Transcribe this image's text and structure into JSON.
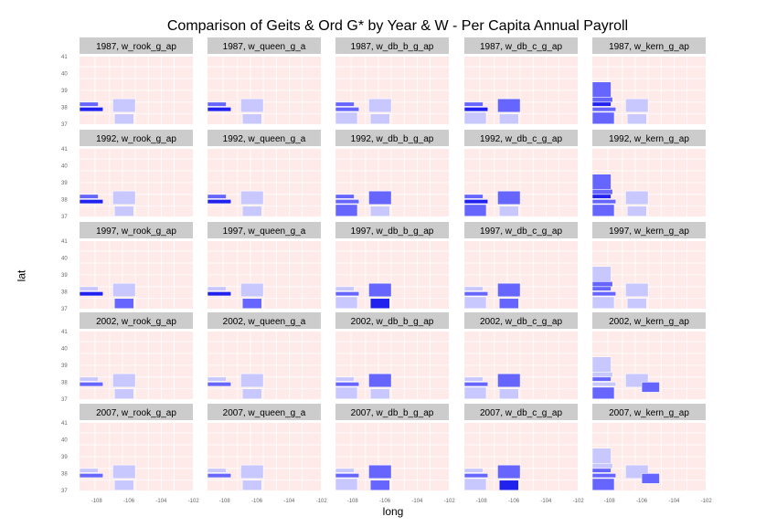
{
  "chart_data": {
    "type": "heatmap",
    "title": "Comparison of Geits & Ord G* by Year & W - Per Capita Annual Payroll",
    "xlabel": "long",
    "ylabel": "lat",
    "x_ticks": [
      "-108",
      "-106",
      "-104",
      "-102"
    ],
    "y_ticks": [
      "41",
      "40",
      "39",
      "38",
      "37"
    ],
    "xlim": [
      -109.06,
      -102.04
    ],
    "ylim": [
      36.99,
      41.0
    ],
    "grid": false,
    "legend": "none",
    "colors": {
      "panel_bg": "#ffeaea",
      "county_border": "#ffffff",
      "strip_bg": "#cccccc",
      "hot_spot_strong": "#2222ee",
      "hot_spot_medium": "#6666ff",
      "hot_spot_light": "#c8c8ff"
    },
    "years": [
      "1987",
      "1992",
      "1997",
      "2002",
      "2007"
    ],
    "weights": [
      "w_rook_g_ap",
      "w_queen_g_a",
      "w_db_b_g_ap",
      "w_db_c_g_ap",
      "w_kern_g_ap"
    ],
    "panels": [
      {
        "label": "1987, w_rook_g_ap"
      },
      {
        "label": "1987, w_queen_g_a"
      },
      {
        "label": "1987, w_db_b_g_ap"
      },
      {
        "label": "1987, w_db_c_g_ap"
      },
      {
        "label": "1987, w_kern_g_ap"
      },
      {
        "label": "1992, w_rook_g_ap"
      },
      {
        "label": "1992, w_queen_g_a"
      },
      {
        "label": "1992, w_db_b_g_ap"
      },
      {
        "label": "1992, w_db_c_g_ap"
      },
      {
        "label": "1992, w_kern_g_ap"
      },
      {
        "label": "1997, w_rook_g_ap"
      },
      {
        "label": "1997, w_queen_g_a"
      },
      {
        "label": "1997, w_db_b_g_ap"
      },
      {
        "label": "1997, w_db_c_g_ap"
      },
      {
        "label": "1997, w_kern_g_ap"
      },
      {
        "label": "2002, w_rook_g_ap"
      },
      {
        "label": "2002, w_queen_g_a"
      },
      {
        "label": "2002, w_db_b_g_ap"
      },
      {
        "label": "2002, w_db_c_g_ap"
      },
      {
        "label": "2002, w_kern_g_ap"
      },
      {
        "label": "2007, w_rook_g_ap"
      },
      {
        "label": "2007, w_queen_g_a"
      },
      {
        "label": "2007, w_db_b_g_ap"
      },
      {
        "label": "2007, w_db_c_g_ap"
      },
      {
        "label": "2007, w_kern_g_ap"
      }
    ],
    "regions": {
      "sw_strip_1": {
        "lon": [
          -109.06,
          -107.9
        ],
        "lat": [
          38.05,
          38.3
        ]
      },
      "sw_strip_2": {
        "lon": [
          -109.06,
          -107.6
        ],
        "lat": [
          37.75,
          38.0
        ]
      },
      "sw_block": {
        "lon": [
          -109.06,
          -107.7
        ],
        "lat": [
          37.0,
          37.7
        ]
      },
      "sw_upper": {
        "lon": [
          -109.06,
          -107.8
        ],
        "lat": [
          38.3,
          38.6
        ]
      },
      "sc_upper": {
        "lon": [
          -107.0,
          -105.6
        ],
        "lat": [
          37.7,
          38.5
        ]
      },
      "sc_lower": {
        "lon": [
          -106.9,
          -105.7
        ],
        "lat": [
          37.0,
          37.6
        ]
      },
      "west_band": {
        "lon": [
          -109.06,
          -107.9
        ],
        "lat": [
          38.6,
          39.5
        ]
      },
      "central_band": {
        "lon": [
          -106.0,
          -104.9
        ],
        "lat": [
          37.4,
          38.0
        ]
      }
    },
    "county_lines": {
      "lon": [
        -108.1,
        -107.2,
        -106.4,
        -105.6,
        -104.8,
        -104.0,
        -103.2
      ],
      "lat": [
        37.6,
        38.3,
        39.0,
        39.7,
        40.4
      ]
    },
    "cells": [
      {
        "panel": 0,
        "region": "sw_strip_1",
        "level": 2
      },
      {
        "panel": 0,
        "region": "sw_strip_2",
        "level": 3
      },
      {
        "panel": 0,
        "region": "sc_upper",
        "level": 1
      },
      {
        "panel": 0,
        "region": "sc_lower",
        "level": 1
      },
      {
        "panel": 1,
        "region": "sw_strip_1",
        "level": 2
      },
      {
        "panel": 1,
        "region": "sw_strip_2",
        "level": 3
      },
      {
        "panel": 1,
        "region": "sc_upper",
        "level": 1
      },
      {
        "panel": 1,
        "region": "sc_lower",
        "level": 1
      },
      {
        "panel": 2,
        "region": "sw_strip_1",
        "level": 2
      },
      {
        "panel": 2,
        "region": "sw_strip_2",
        "level": 2
      },
      {
        "panel": 2,
        "region": "sw_block",
        "level": 1
      },
      {
        "panel": 2,
        "region": "sc_upper",
        "level": 1
      },
      {
        "panel": 2,
        "region": "sc_lower",
        "level": 1
      },
      {
        "panel": 3,
        "region": "sw_strip_1",
        "level": 2
      },
      {
        "panel": 3,
        "region": "sw_strip_2",
        "level": 3
      },
      {
        "panel": 3,
        "region": "sw_block",
        "level": 1
      },
      {
        "panel": 3,
        "region": "sc_upper",
        "level": 2
      },
      {
        "panel": 3,
        "region": "sc_lower",
        "level": 1
      },
      {
        "panel": 4,
        "region": "west_band",
        "level": 2
      },
      {
        "panel": 4,
        "region": "sw_upper",
        "level": 2
      },
      {
        "panel": 4,
        "region": "sw_strip_1",
        "level": 3
      },
      {
        "panel": 4,
        "region": "sw_strip_2",
        "level": 2
      },
      {
        "panel": 4,
        "region": "sw_block",
        "level": 2
      },
      {
        "panel": 4,
        "region": "sc_upper",
        "level": 1
      },
      {
        "panel": 4,
        "region": "sc_lower",
        "level": 1
      },
      {
        "panel": 5,
        "region": "sw_strip_1",
        "level": 2
      },
      {
        "panel": 5,
        "region": "sw_strip_2",
        "level": 3
      },
      {
        "panel": 5,
        "region": "sc_upper",
        "level": 1
      },
      {
        "panel": 5,
        "region": "sc_lower",
        "level": 1
      },
      {
        "panel": 6,
        "region": "sw_strip_1",
        "level": 2
      },
      {
        "panel": 6,
        "region": "sw_strip_2",
        "level": 3
      },
      {
        "panel": 6,
        "region": "sc_upper",
        "level": 1
      },
      {
        "panel": 6,
        "region": "sc_lower",
        "level": 1
      },
      {
        "panel": 7,
        "region": "sw_strip_1",
        "level": 2
      },
      {
        "panel": 7,
        "region": "sw_strip_2",
        "level": 2
      },
      {
        "panel": 7,
        "region": "sw_block",
        "level": 2
      },
      {
        "panel": 7,
        "region": "sc_upper",
        "level": 2
      },
      {
        "panel": 7,
        "region": "sc_lower",
        "level": 1
      },
      {
        "panel": 8,
        "region": "sw_strip_1",
        "level": 2
      },
      {
        "panel": 8,
        "region": "sw_strip_2",
        "level": 3
      },
      {
        "panel": 8,
        "region": "sw_block",
        "level": 2
      },
      {
        "panel": 8,
        "region": "sc_upper",
        "level": 2
      },
      {
        "panel": 8,
        "region": "sc_lower",
        "level": 1
      },
      {
        "panel": 9,
        "region": "west_band",
        "level": 2
      },
      {
        "panel": 9,
        "region": "sw_upper",
        "level": 2
      },
      {
        "panel": 9,
        "region": "sw_strip_1",
        "level": 3
      },
      {
        "panel": 9,
        "region": "sw_strip_2",
        "level": 2
      },
      {
        "panel": 9,
        "region": "sw_block",
        "level": 2
      },
      {
        "panel": 9,
        "region": "sc_upper",
        "level": 1
      },
      {
        "panel": 9,
        "region": "sc_lower",
        "level": 1
      },
      {
        "panel": 10,
        "region": "sw_strip_1",
        "level": 1
      },
      {
        "panel": 10,
        "region": "sw_strip_2",
        "level": 3
      },
      {
        "panel": 10,
        "region": "sc_upper",
        "level": 1
      },
      {
        "panel": 10,
        "region": "sc_lower",
        "level": 2
      },
      {
        "panel": 11,
        "region": "sw_strip_1",
        "level": 1
      },
      {
        "panel": 11,
        "region": "sw_strip_2",
        "level": 3
      },
      {
        "panel": 11,
        "region": "sc_upper",
        "level": 1
      },
      {
        "panel": 11,
        "region": "sc_lower",
        "level": 2
      },
      {
        "panel": 12,
        "region": "sw_strip_1",
        "level": 1
      },
      {
        "panel": 12,
        "region": "sw_strip_2",
        "level": 2
      },
      {
        "panel": 12,
        "region": "sw_block",
        "level": 1
      },
      {
        "panel": 12,
        "region": "sc_upper",
        "level": 2
      },
      {
        "panel": 12,
        "region": "sc_lower",
        "level": 3
      },
      {
        "panel": 13,
        "region": "sw_strip_1",
        "level": 1
      },
      {
        "panel": 13,
        "region": "sw_strip_2",
        "level": 2
      },
      {
        "panel": 13,
        "region": "sw_block",
        "level": 1
      },
      {
        "panel": 13,
        "region": "sc_upper",
        "level": 2
      },
      {
        "panel": 13,
        "region": "sc_lower",
        "level": 2
      },
      {
        "panel": 14,
        "region": "west_band",
        "level": 1
      },
      {
        "panel": 14,
        "region": "sw_upper",
        "level": 2
      },
      {
        "panel": 14,
        "region": "sw_strip_1",
        "level": 2
      },
      {
        "panel": 14,
        "region": "sw_strip_2",
        "level": 2
      },
      {
        "panel": 14,
        "region": "sw_block",
        "level": 1
      },
      {
        "panel": 14,
        "region": "sc_upper",
        "level": 1
      },
      {
        "panel": 14,
        "region": "sc_lower",
        "level": 1
      },
      {
        "panel": 15,
        "region": "sw_strip_1",
        "level": 1
      },
      {
        "panel": 15,
        "region": "sw_strip_2",
        "level": 2
      },
      {
        "panel": 15,
        "region": "sc_upper",
        "level": 1
      },
      {
        "panel": 15,
        "region": "sc_lower",
        "level": 1
      },
      {
        "panel": 16,
        "region": "sw_strip_1",
        "level": 1
      },
      {
        "panel": 16,
        "region": "sw_strip_2",
        "level": 2
      },
      {
        "panel": 16,
        "region": "sc_upper",
        "level": 1
      },
      {
        "panel": 16,
        "region": "sc_lower",
        "level": 1
      },
      {
        "panel": 17,
        "region": "sw_strip_1",
        "level": 1
      },
      {
        "panel": 17,
        "region": "sw_strip_2",
        "level": 2
      },
      {
        "panel": 17,
        "region": "sw_block",
        "level": 1
      },
      {
        "panel": 17,
        "region": "sc_upper",
        "level": 2
      },
      {
        "panel": 17,
        "region": "sc_lower",
        "level": 1
      },
      {
        "panel": 18,
        "region": "sw_strip_1",
        "level": 1
      },
      {
        "panel": 18,
        "region": "sw_strip_2",
        "level": 2
      },
      {
        "panel": 18,
        "region": "sw_block",
        "level": 1
      },
      {
        "panel": 18,
        "region": "sc_upper",
        "level": 2
      },
      {
        "panel": 18,
        "region": "sc_lower",
        "level": 1
      },
      {
        "panel": 19,
        "region": "west_band",
        "level": 1
      },
      {
        "panel": 19,
        "region": "sw_upper",
        "level": 1
      },
      {
        "panel": 19,
        "region": "sw_strip_1",
        "level": 2
      },
      {
        "panel": 19,
        "region": "sw_strip_2",
        "level": 1
      },
      {
        "panel": 19,
        "region": "sw_block",
        "level": 2
      },
      {
        "panel": 19,
        "region": "sc_upper",
        "level": 1
      },
      {
        "panel": 19,
        "region": "central_band",
        "level": 2
      },
      {
        "panel": 20,
        "region": "sw_strip_1",
        "level": 1
      },
      {
        "panel": 20,
        "region": "sw_strip_2",
        "level": 2
      },
      {
        "panel": 20,
        "region": "sc_upper",
        "level": 1
      },
      {
        "panel": 20,
        "region": "sc_lower",
        "level": 1
      },
      {
        "panel": 21,
        "region": "sw_strip_1",
        "level": 1
      },
      {
        "panel": 21,
        "region": "sw_strip_2",
        "level": 2
      },
      {
        "panel": 21,
        "region": "sc_upper",
        "level": 1
      },
      {
        "panel": 21,
        "region": "sc_lower",
        "level": 1
      },
      {
        "panel": 22,
        "region": "sw_strip_1",
        "level": 1
      },
      {
        "panel": 22,
        "region": "sw_strip_2",
        "level": 2
      },
      {
        "panel": 22,
        "region": "sw_block",
        "level": 1
      },
      {
        "panel": 22,
        "region": "sc_upper",
        "level": 2
      },
      {
        "panel": 22,
        "region": "sc_lower",
        "level": 2
      },
      {
        "panel": 23,
        "region": "sw_strip_1",
        "level": 1
      },
      {
        "panel": 23,
        "region": "sw_strip_2",
        "level": 2
      },
      {
        "panel": 23,
        "region": "sw_block",
        "level": 1
      },
      {
        "panel": 23,
        "region": "sc_upper",
        "level": 2
      },
      {
        "panel": 23,
        "region": "sc_lower",
        "level": 3
      },
      {
        "panel": 24,
        "region": "west_band",
        "level": 1
      },
      {
        "panel": 24,
        "region": "sw_upper",
        "level": 1
      },
      {
        "panel": 24,
        "region": "sw_strip_1",
        "level": 2
      },
      {
        "panel": 24,
        "region": "sw_strip_2",
        "level": 2
      },
      {
        "panel": 24,
        "region": "sw_block",
        "level": 2
      },
      {
        "panel": 24,
        "region": "sc_upper",
        "level": 1
      },
      {
        "panel": 24,
        "region": "central_band",
        "level": 2
      }
    ]
  }
}
